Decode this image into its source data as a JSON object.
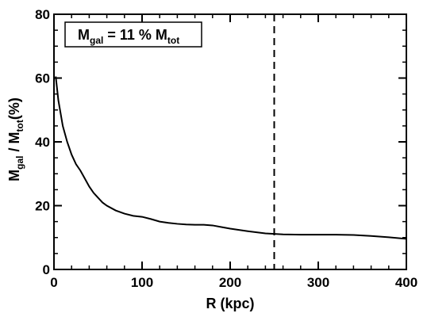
{
  "chart_data": {
    "type": "line",
    "title": "",
    "xlabel": "R (kpc)",
    "ylabel": {
      "base1": "M",
      "sub1": "gal",
      "mid": " / M",
      "sub2": "tot",
      "tail": "(%)"
    },
    "xlim": [
      0,
      400
    ],
    "ylim": [
      0,
      80
    ],
    "x_ticks": [
      0,
      100,
      200,
      300,
      400
    ],
    "x_tick_labels": [
      "0",
      "100",
      "200",
      "300",
      "400"
    ],
    "y_ticks": [
      0,
      20,
      40,
      60,
      80
    ],
    "y_tick_labels": [
      "0",
      "20",
      "40",
      "60",
      "80"
    ],
    "x_minor_step": 20,
    "y_minor_step": 5,
    "grid": false,
    "series": [
      {
        "x": [
          2,
          5,
          10,
          15,
          20,
          25,
          30,
          35,
          40,
          45,
          50,
          55,
          60,
          70,
          80,
          90,
          100,
          110,
          120,
          130,
          140,
          150,
          160,
          170,
          180,
          190,
          200,
          220,
          240,
          260,
          280,
          300,
          320,
          340,
          360,
          380,
          400
        ],
        "values": [
          60.5,
          53,
          45,
          40,
          36,
          33,
          31,
          28.5,
          26,
          24,
          22.5,
          21,
          20,
          18.5,
          17.5,
          16.8,
          16.5,
          15.8,
          15,
          14.6,
          14.3,
          14.1,
          14.0,
          14.0,
          13.8,
          13.3,
          12.8,
          12.0,
          11.3,
          11.0,
          10.9,
          10.9,
          10.9,
          10.8,
          10.5,
          10.1,
          9.6
        ]
      }
    ],
    "reference_line": {
      "orientation": "vertical",
      "x": 250,
      "style": "dashed"
    },
    "annotation": {
      "base1": "M",
      "sub1": "gal",
      "mid": " = 11 % M",
      "sub2": "tot",
      "position": "top-left",
      "boxed": true
    }
  }
}
